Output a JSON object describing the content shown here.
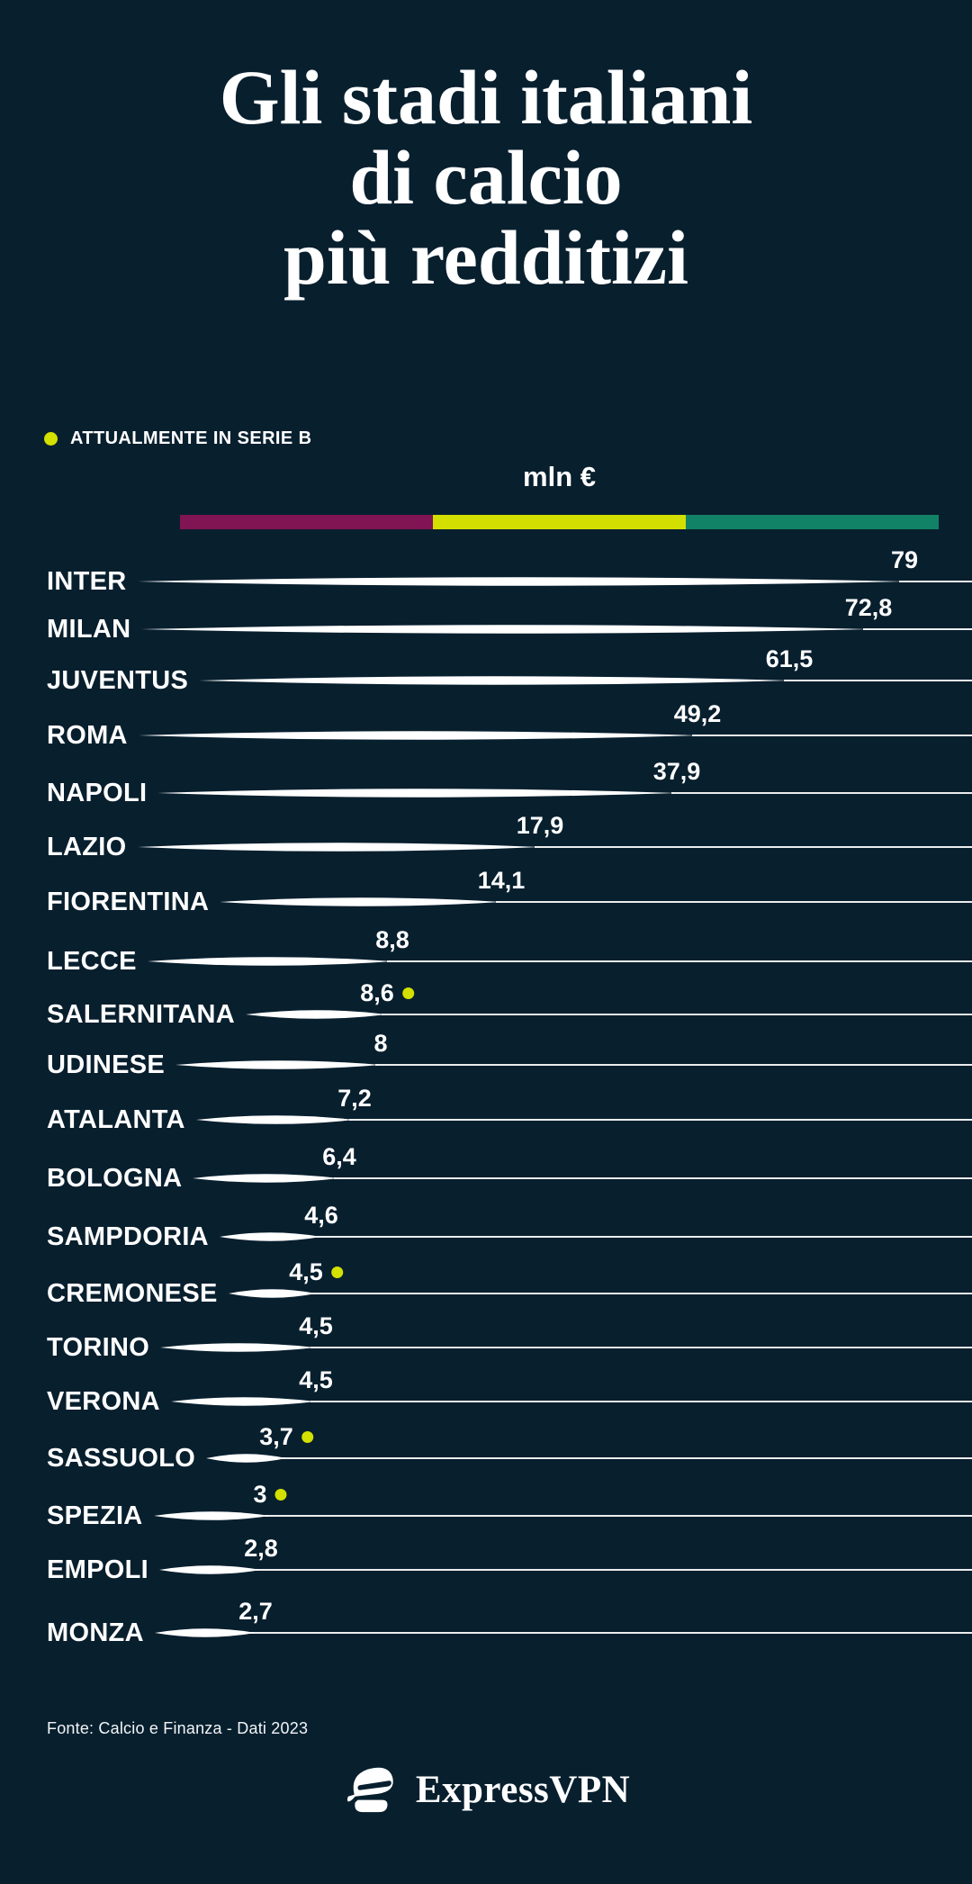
{
  "page": {
    "background": "#081f2e"
  },
  "title": {
    "lines": [
      "Gli stadi italiani",
      "di calcio",
      "più redditizi"
    ]
  },
  "legend": {
    "label": "ATTUALMENTE IN SERIE B",
    "dot_color": "#d3e000"
  },
  "axis": {
    "unit_label": "mln €"
  },
  "scale_bar": {
    "colors": [
      "#811453",
      "#d3df00",
      "#128266"
    ]
  },
  "rows": [
    {
      "team": "INTER",
      "value_label": "79",
      "value": 79,
      "serie_b": false
    },
    {
      "team": "MILAN",
      "value_label": "72,8",
      "value": 72.8,
      "serie_b": false
    },
    {
      "team": "JUVENTUS",
      "value_label": "61,5",
      "value": 61.5,
      "serie_b": false
    },
    {
      "team": "ROMA",
      "value_label": "49,2",
      "value": 49.2,
      "serie_b": false
    },
    {
      "team": "NAPOLI",
      "value_label": "37,9",
      "value": 37.9,
      "serie_b": false
    },
    {
      "team": "LAZIO",
      "value_label": "17,9",
      "value": 17.9,
      "serie_b": false
    },
    {
      "team": "FIORENTINA",
      "value_label": "14,1",
      "value": 14.1,
      "serie_b": false
    },
    {
      "team": "LECCE",
      "value_label": "8,8",
      "value": 8.8,
      "serie_b": false
    },
    {
      "team": "SALERNITANA",
      "value_label": "8,6",
      "value": 8.6,
      "serie_b": true
    },
    {
      "team": "UDINESE",
      "value_label": "8",
      "value": 8,
      "serie_b": false
    },
    {
      "team": "ATALANTA",
      "value_label": "7,2",
      "value": 7.2,
      "serie_b": false
    },
    {
      "team": "BOLOGNA",
      "value_label": "6,4",
      "value": 6.4,
      "serie_b": false
    },
    {
      "team": "SAMPDORIA",
      "value_label": "4,6",
      "value": 4.6,
      "serie_b": false
    },
    {
      "team": "CREMONESE",
      "value_label": "4,5",
      "value": 4.5,
      "serie_b": true
    },
    {
      "team": "TORINO",
      "value_label": "4,5",
      "value": 4.5,
      "serie_b": false
    },
    {
      "team": "VERONA",
      "value_label": "4,5",
      "value": 4.5,
      "serie_b": false
    },
    {
      "team": "SASSUOLO",
      "value_label": "3,7",
      "value": 3.7,
      "serie_b": true
    },
    {
      "team": "SPEZIA",
      "value_label": "3",
      "value": 3,
      "serie_b": true
    },
    {
      "team": "EMPOLI",
      "value_label": "2,8",
      "value": 2.8,
      "serie_b": false
    },
    {
      "team": "MONZA",
      "value_label": "2,7",
      "value": 2.7,
      "serie_b": false
    }
  ],
  "footer": {
    "source": "Fonte: Calcio e Finanza - Dati 2023"
  },
  "brand": {
    "name": "ExpressVPN"
  },
  "chart_data": {
    "type": "bar",
    "orientation": "horizontal",
    "title": "Gli stadi italiani di calcio più redditizi",
    "unit": "mln €",
    "categories": [
      "INTER",
      "MILAN",
      "JUVENTUS",
      "ROMA",
      "NAPOLI",
      "LAZIO",
      "FIORENTINA",
      "LECCE",
      "SALERNITANA",
      "UDINESE",
      "ATALANTA",
      "BOLOGNA",
      "SAMPDORIA",
      "CREMONESE",
      "TORINO",
      "VERONA",
      "SASSUOLO",
      "SPEZIA",
      "EMPOLI",
      "MONZA"
    ],
    "values": [
      79,
      72.8,
      61.5,
      49.2,
      37.9,
      17.9,
      14.1,
      8.8,
      8.6,
      8,
      7.2,
      6.4,
      4.6,
      4.5,
      4.5,
      4.5,
      3.7,
      3,
      2.8,
      2.7
    ],
    "currently_in_serie_b": [
      "SALERNITANA",
      "CREMONESE",
      "SASSUOLO",
      "SPEZIA"
    ],
    "legend": "ATTUALMENTE IN SERIE B",
    "xlim": [
      0,
      79
    ],
    "grid": false,
    "legend_position": "top-left",
    "value_labels_shown": true,
    "source": "Fonte: Calcio e Finanza - Dati 2023"
  }
}
